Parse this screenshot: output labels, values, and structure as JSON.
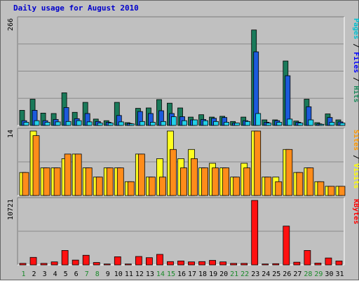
{
  "chart_data": {
    "type": "bar",
    "title": "Daily usage for August 2010",
    "days": [
      "1",
      "2",
      "3",
      "4",
      "5",
      "6",
      "7",
      "8",
      "9",
      "10",
      "11",
      "12",
      "13",
      "14",
      "15",
      "16",
      "17",
      "18",
      "19",
      "20",
      "21",
      "22",
      "23",
      "24",
      "25",
      "26",
      "27",
      "28",
      "29",
      "30",
      "31"
    ],
    "weekend_days": [
      "1",
      "7",
      "8",
      "14",
      "15",
      "21",
      "22",
      "28",
      "29"
    ],
    "panels": [
      {
        "id": "hits",
        "max_label": "266",
        "max": 266,
        "legend": [
          {
            "text": "Pages",
            "color": "#00c0d0"
          },
          {
            "text": " / ",
            "color": "#000000"
          },
          {
            "text": "Files",
            "color": "#0000ff"
          },
          {
            "text": " / ",
            "color": "#000000"
          },
          {
            "text": "Hits",
            "color": "#1a8a5a"
          }
        ],
        "series": [
          {
            "name": "Hits",
            "color": "#1a7a5a",
            "values": [
              38,
              66,
              31,
              30,
              82,
              33,
              58,
              16,
              12,
              58,
              7,
              43,
              44,
              65,
              56,
              44,
              21,
              27,
              21,
              23,
              10,
              21,
              240,
              14,
              14,
              162,
              11,
              66,
              7,
              29,
              14
            ]
          },
          {
            "name": "Files",
            "color": "#1c5adc",
            "values": [
              12,
              38,
              12,
              15,
              45,
              17,
              30,
              10,
              8,
              25,
              5,
              35,
              30,
              37,
              30,
              22,
              14,
              15,
              18,
              20,
              6,
              12,
              185,
              8,
              12,
              125,
              8,
              47,
              4,
              20,
              9
            ]
          },
          {
            "name": "Pages",
            "color": "#22d0e8",
            "values": [
              8,
              12,
              8,
              9,
              10,
              12,
              9,
              6,
              6,
              9,
              4,
              10,
              8,
              10,
              22,
              12,
              14,
              12,
              10,
              8,
              6,
              10,
              30,
              6,
              8,
              16,
              6,
              14,
              3,
              8,
              6
            ]
          }
        ]
      },
      {
        "id": "visits",
        "max_label": "14",
        "max": 14,
        "legend": [
          {
            "text": "Sites",
            "color": "#ff9900"
          },
          {
            "text": " / ",
            "color": "#000000"
          },
          {
            "text": "Visits",
            "color": "#ffff00"
          }
        ],
        "series": [
          {
            "name": "Visits",
            "color": "#ffff20",
            "values": [
              5,
              14,
              6,
              6,
              8,
              9,
              6,
              4,
              6,
              6,
              3,
              9,
              4,
              8,
              14,
              8,
              10,
              6,
              7,
              6,
              4,
              7,
              14,
              4,
              4,
              10,
              5,
              6,
              3,
              2,
              2
            ]
          },
          {
            "name": "Sites",
            "color": "#ff8c1a",
            "values": [
              5,
              13,
              6,
              6,
              9,
              9,
              6,
              4,
              6,
              6,
              3,
              9,
              4,
              4,
              10,
              6,
              8,
              6,
              6,
              6,
              4,
              6,
              14,
              4,
              3,
              10,
              5,
              6,
              3,
              2,
              2
            ]
          }
        ]
      },
      {
        "id": "kbytes",
        "max_label": "10721",
        "max": 10721,
        "legend": [
          {
            "text": "KBytes",
            "color": "#ff0000"
          }
        ],
        "series": [
          {
            "name": "KBytes",
            "color": "#ff1010",
            "values": [
              250,
              1250,
              250,
              500,
              2400,
              800,
              1600,
              400,
              150,
              1350,
              150,
              1400,
              1200,
              1750,
              550,
              650,
              500,
              550,
              750,
              500,
              250,
              250,
              10721,
              150,
              200,
              6450,
              450,
              2400,
              300,
              1150,
              650
            ]
          }
        ]
      }
    ]
  }
}
